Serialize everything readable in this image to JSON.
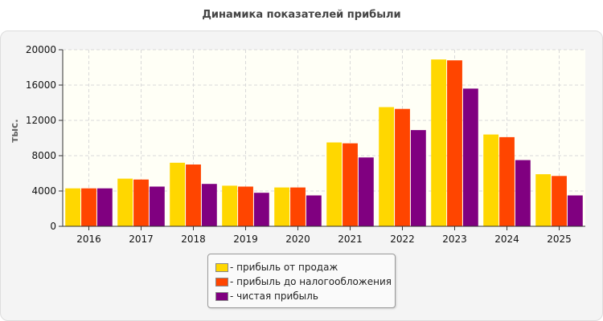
{
  "chart_data": {
    "type": "bar",
    "title": "Динамика показателей прибыли",
    "ylabel": "тыс.",
    "xlabel": "",
    "ylim": [
      0,
      20000
    ],
    "yticks": [
      0,
      4000,
      8000,
      12000,
      16000,
      20000
    ],
    "grid": true,
    "legend_position": "bottom",
    "categories": [
      "2016",
      "2017",
      "2018",
      "2019",
      "2020",
      "2021",
      "2022",
      "2023",
      "2024",
      "2025"
    ],
    "series": [
      {
        "name": "- прибыль от продаж",
        "color": "#ffd700",
        "values": [
          4300,
          5400,
          7200,
          4600,
          4400,
          9500,
          13500,
          18900,
          10400,
          5900
        ]
      },
      {
        "name": "- прибыль до налогообложения",
        "color": "#ff4500",
        "values": [
          4300,
          5300,
          7000,
          4500,
          4400,
          9400,
          13300,
          18800,
          10100,
          5700
        ]
      },
      {
        "name": "- чистая прибыль",
        "color": "#800080",
        "values": [
          4300,
          4500,
          4800,
          3800,
          3500,
          7800,
          10900,
          15600,
          7500,
          3500
        ]
      }
    ]
  }
}
